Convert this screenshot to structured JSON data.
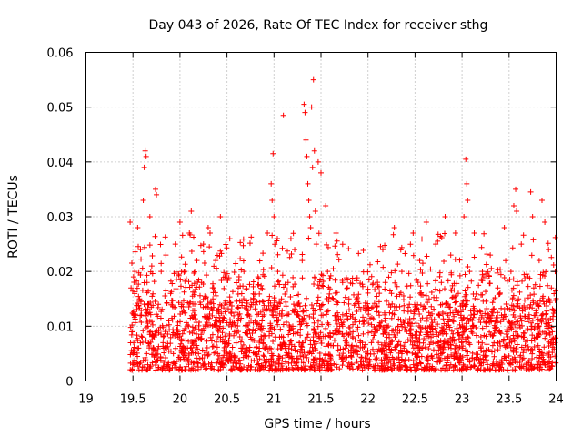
{
  "chart_data": {
    "type": "scatter",
    "title": "Day 043 of 2026, Rate Of TEC Index for receiver sthg",
    "xlabel": "GPS time / hours",
    "ylabel": "ROTI / TECUs",
    "xlim": [
      19,
      24
    ],
    "ylim": [
      0,
      0.06
    ],
    "xticks": [
      19,
      19.5,
      20,
      20.5,
      21,
      21.5,
      22,
      22.5,
      23,
      23.5,
      24
    ],
    "xtick_labels": [
      "19",
      "19.5",
      "20",
      "20.5",
      "21",
      "21.5",
      "22",
      "22.5",
      "23",
      "23.5",
      "24"
    ],
    "yticks": [
      0,
      0.01,
      0.02,
      0.03,
      0.04,
      0.05,
      0.06
    ],
    "ytick_labels": [
      "0",
      "0.01",
      "0.02",
      "0.03",
      "0.04",
      "0.05",
      "0.06"
    ],
    "grid": true,
    "marker": "+",
    "color": "#ff0000",
    "series": [
      {
        "name": "ROTI",
        "points": [
          [
            19.47,
            0.029
          ],
          [
            19.48,
            0.017
          ],
          [
            19.49,
            0.009
          ],
          [
            19.5,
            0.005
          ],
          [
            19.51,
            0.003
          ],
          [
            19.52,
            0.02
          ],
          [
            19.53,
            0.012
          ],
          [
            19.55,
            0.028
          ],
          [
            19.56,
            0.006
          ],
          [
            19.57,
            0.015
          ],
          [
            19.58,
            0.024
          ],
          [
            19.6,
            0.008
          ],
          [
            19.61,
            0.033
          ],
          [
            19.62,
            0.039
          ],
          [
            19.63,
            0.042
          ],
          [
            19.64,
            0.041
          ],
          [
            19.65,
            0.018
          ],
          [
            19.66,
            0.01
          ],
          [
            19.68,
            0.03
          ],
          [
            19.7,
            0.021
          ],
          [
            19.72,
            0.006
          ],
          [
            19.74,
            0.035
          ],
          [
            19.75,
            0.034
          ],
          [
            19.77,
            0.014
          ],
          [
            19.8,
            0.02
          ],
          [
            19.82,
            0.007
          ],
          [
            19.85,
            0.023
          ],
          [
            19.88,
            0.011
          ],
          [
            19.9,
            0.016
          ],
          [
            19.93,
            0.005
          ],
          [
            19.95,
            0.025
          ],
          [
            19.98,
            0.009
          ],
          [
            20.0,
            0.029
          ],
          [
            20.02,
            0.014
          ],
          [
            20.05,
            0.02
          ],
          [
            20.08,
            0.006
          ],
          [
            20.1,
            0.027
          ],
          [
            20.12,
            0.031
          ],
          [
            20.15,
            0.012
          ],
          [
            20.18,
            0.022
          ],
          [
            20.2,
            0.008
          ],
          [
            20.23,
            0.018
          ],
          [
            20.25,
            0.025
          ],
          [
            20.28,
            0.01
          ],
          [
            20.3,
            0.028
          ],
          [
            20.32,
            0.027
          ],
          [
            20.35,
            0.015
          ],
          [
            20.38,
            0.022
          ],
          [
            20.4,
            0.005
          ],
          [
            20.43,
            0.03
          ],
          [
            20.45,
            0.011
          ],
          [
            20.48,
            0.019
          ],
          [
            20.5,
            0.007
          ],
          [
            20.53,
            0.026
          ],
          [
            20.55,
            0.013
          ],
          [
            20.58,
            0.009
          ],
          [
            20.62,
            0.017
          ],
          [
            20.65,
            0.006
          ],
          [
            20.68,
            0.02
          ],
          [
            20.72,
            0.012
          ],
          [
            20.75,
            0.008
          ],
          [
            20.78,
            0.015
          ],
          [
            20.8,
            0.005
          ],
          [
            20.83,
            0.019
          ],
          [
            20.86,
            0.01
          ],
          [
            20.88,
            0.013
          ],
          [
            20.9,
            0.006
          ],
          [
            20.93,
            0.027
          ],
          [
            20.95,
            0.009
          ],
          [
            20.97,
            0.036
          ],
          [
            20.98,
            0.033
          ],
          [
            20.99,
            0.0415
          ],
          [
            21.0,
            0.03
          ],
          [
            21.02,
            0.012
          ],
          [
            21.04,
            0.02
          ],
          [
            21.06,
            0.008
          ],
          [
            21.08,
            0.015
          ],
          [
            21.1,
            0.0485
          ],
          [
            21.12,
            0.006
          ],
          [
            21.15,
            0.018
          ],
          [
            21.18,
            0.026
          ],
          [
            21.2,
            0.01
          ],
          [
            21.22,
            0.024
          ],
          [
            21.25,
            0.014
          ],
          [
            21.27,
            0.007
          ],
          [
            21.3,
            0.022
          ],
          [
            21.32,
            0.0505
          ],
          [
            21.33,
            0.049
          ],
          [
            21.34,
            0.044
          ],
          [
            21.35,
            0.041
          ],
          [
            21.36,
            0.036
          ],
          [
            21.37,
            0.033
          ],
          [
            21.38,
            0.03
          ],
          [
            21.39,
            0.028
          ],
          [
            21.4,
            0.05
          ],
          [
            21.41,
            0.039
          ],
          [
            21.42,
            0.055
          ],
          [
            21.43,
            0.042
          ],
          [
            21.44,
            0.031
          ],
          [
            21.45,
            0.025
          ],
          [
            21.47,
            0.04
          ],
          [
            21.48,
            0.017
          ],
          [
            21.5,
            0.038
          ],
          [
            21.52,
            0.012
          ],
          [
            21.55,
            0.032
          ],
          [
            21.57,
            0.02
          ],
          [
            21.6,
            0.008
          ],
          [
            21.63,
            0.015
          ],
          [
            21.66,
            0.027
          ],
          [
            21.7,
            0.01
          ],
          [
            21.73,
            0.018
          ],
          [
            21.76,
            0.006
          ],
          [
            21.8,
            0.013
          ],
          [
            21.84,
            0.009
          ],
          [
            21.88,
            0.015
          ],
          [
            21.92,
            0.007
          ],
          [
            21.96,
            0.011
          ],
          [
            22.0,
            0.005
          ],
          [
            22.04,
            0.009
          ],
          [
            22.08,
            0.004
          ],
          [
            22.12,
            0.012
          ],
          [
            22.16,
            0.006
          ],
          [
            22.2,
            0.008
          ],
          [
            22.25,
            0.016
          ],
          [
            22.28,
            0.028
          ],
          [
            22.32,
            0.01
          ],
          [
            22.36,
            0.02
          ],
          [
            22.4,
            0.007
          ],
          [
            22.44,
            0.014
          ],
          [
            22.48,
            0.027
          ],
          [
            22.52,
            0.009
          ],
          [
            22.55,
            0.022
          ],
          [
            22.58,
            0.006
          ],
          [
            22.62,
            0.029
          ],
          [
            22.65,
            0.015
          ],
          [
            22.68,
            0.01
          ],
          [
            22.72,
            0.025
          ],
          [
            22.75,
            0.007
          ],
          [
            22.78,
            0.018
          ],
          [
            22.82,
            0.03
          ],
          [
            22.85,
            0.012
          ],
          [
            22.88,
            0.023
          ],
          [
            22.9,
            0.008
          ],
          [
            22.93,
            0.027
          ],
          [
            22.96,
            0.016
          ],
          [
            23.0,
            0.011
          ],
          [
            23.02,
            0.03
          ],
          [
            23.04,
            0.0405
          ],
          [
            23.05,
            0.036
          ],
          [
            23.06,
            0.033
          ],
          [
            23.08,
            0.02
          ],
          [
            23.1,
            0.009
          ],
          [
            23.13,
            0.027
          ],
          [
            23.16,
            0.015
          ],
          [
            23.2,
            0.006
          ],
          [
            23.23,
            0.019
          ],
          [
            23.26,
            0.01
          ],
          [
            23.3,
            0.023
          ],
          [
            23.34,
            0.007
          ],
          [
            23.38,
            0.017
          ],
          [
            23.42,
            0.012
          ],
          [
            23.45,
            0.028
          ],
          [
            23.48,
            0.009
          ],
          [
            23.52,
            0.02
          ],
          [
            23.55,
            0.032
          ],
          [
            23.57,
            0.035
          ],
          [
            23.58,
            0.031
          ],
          [
            23.6,
            0.015
          ],
          [
            23.63,
            0.025
          ],
          [
            23.66,
            0.008
          ],
          [
            23.7,
            0.019
          ],
          [
            23.73,
            0.0345
          ],
          [
            23.75,
            0.03
          ],
          [
            23.78,
            0.012
          ],
          [
            23.82,
            0.022
          ],
          [
            23.85,
            0.033
          ],
          [
            23.88,
            0.029
          ],
          [
            23.9,
            0.01
          ],
          [
            23.92,
            0.024
          ],
          [
            23.95,
            0.017
          ],
          [
            23.97,
            0.007
          ],
          [
            23.99,
            0.02
          ]
        ],
        "dense_band": {
          "x_range": [
            19.47,
            24.0
          ],
          "y_range": [
            0.002,
            0.018
          ],
          "density": "high"
        }
      }
    ]
  }
}
